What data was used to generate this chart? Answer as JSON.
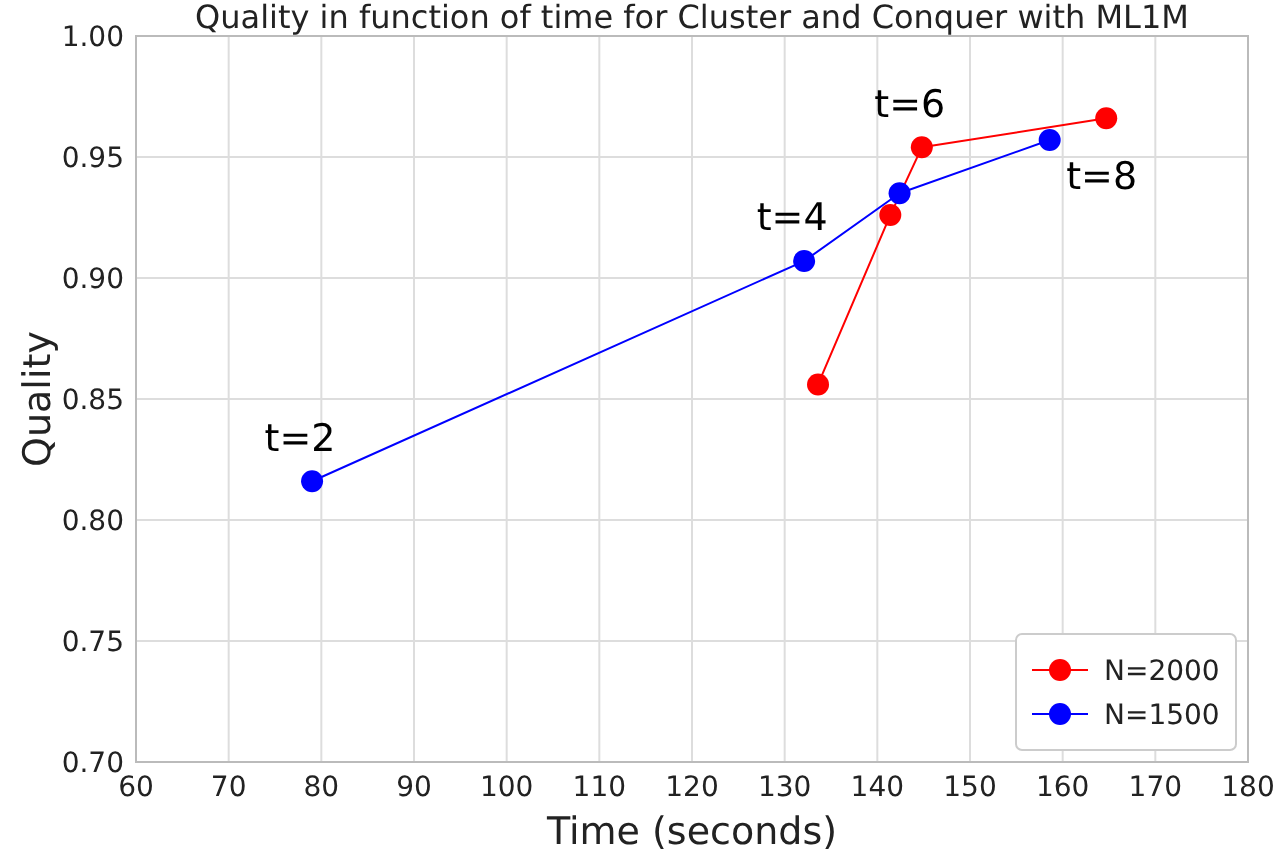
{
  "chart_data": {
    "type": "line",
    "title": "Quality in function of time for Cluster and Conquer with ML1M",
    "xlabel": "Time (seconds)",
    "ylabel": "Quality",
    "xlim": [
      60,
      180
    ],
    "xticks": [
      60,
      70,
      80,
      90,
      100,
      110,
      120,
      130,
      140,
      150,
      160,
      170,
      180
    ],
    "ylim": [
      0.7,
      1.0
    ],
    "yticks": [
      {
        "value": 0.7,
        "label": "0.70"
      },
      {
        "value": 0.75,
        "label": "0.75"
      },
      {
        "value": 0.8,
        "label": "0.80"
      },
      {
        "value": 0.85,
        "label": "0.85"
      },
      {
        "value": 0.9,
        "label": "0.90"
      },
      {
        "value": 0.95,
        "label": "0.95"
      },
      {
        "value": 1.0,
        "label": "1.00"
      }
    ],
    "grid": true,
    "legend": "bottom right",
    "marker": "circle",
    "line_style": "solid",
    "series": [
      {
        "name": "N=2000",
        "color": "#ff0000",
        "x": [
          133.6,
          141.4,
          144.8,
          164.7
        ],
        "values": [
          0.856,
          0.926,
          0.954,
          0.966
        ]
      },
      {
        "name": "N=1500",
        "color": "#0000ff",
        "x": [
          79.0,
          132.1,
          142.4,
          158.6
        ],
        "values": [
          0.816,
          0.907,
          0.935,
          0.957
        ]
      }
    ],
    "annotations": [
      {
        "text": "t=2",
        "x": 79.0,
        "y": 0.816
      },
      {
        "text": "t=4",
        "x": 132.1,
        "y": 0.907
      },
      {
        "text": "t=6",
        "x": 144.8,
        "y": 0.954
      },
      {
        "text": "t=8",
        "x": 158.6,
        "y": 0.957
      }
    ]
  }
}
